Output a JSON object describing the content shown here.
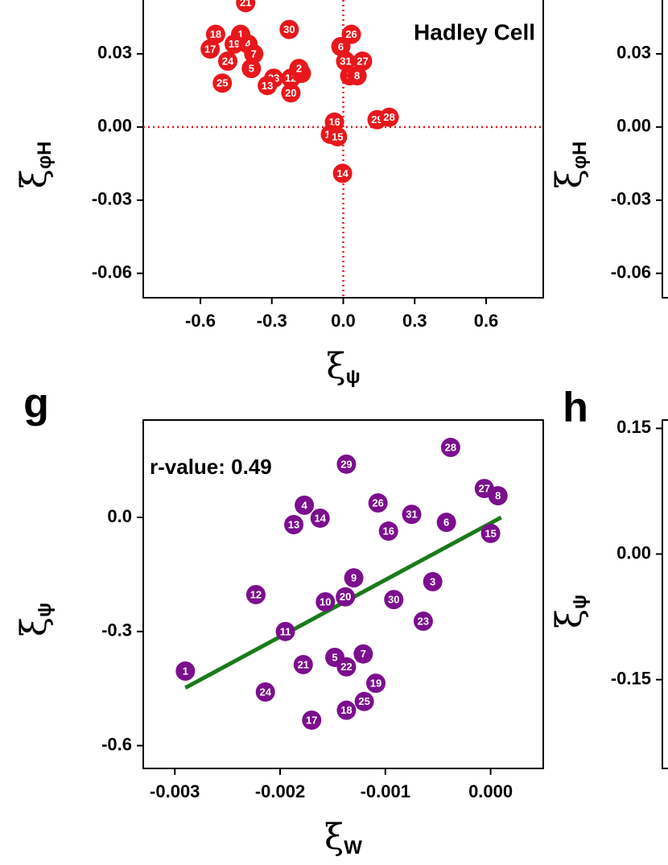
{
  "chart_data": [
    {
      "type": "scatter",
      "annotation": "Hadley Cell",
      "xlabel": {
        "symbol": "ξ",
        "subscript": "ψ"
      },
      "ylabel": {
        "symbol": "ξ",
        "subscript": "φH"
      },
      "xlim": [
        -0.84,
        0.84
      ],
      "xticks": [
        -0.6,
        -0.3,
        {
          "value": 0,
          "label": "0.0"
        },
        0.3,
        0.6
      ],
      "ylim": [
        -0.07,
        0.06
      ],
      "yticks": [
        0.03,
        {
          "value": 0,
          "label": "0.00"
        },
        -0.03,
        -0.06
      ],
      "hline": 0,
      "vline": 0,
      "series": [
        {
          "color": "#e8171b",
          "point_labels": [
            "21",
            "18",
            "1",
            "17",
            "19",
            "4",
            "7",
            "24",
            "5",
            "25",
            "30",
            "23",
            "13",
            "12",
            "9",
            "2",
            "20",
            "6",
            "26",
            "31",
            "27",
            "3",
            "8",
            "16",
            "10",
            "15",
            "14",
            "29",
            "28"
          ],
          "x": [
            -0.41,
            -0.536,
            -0.431,
            -0.559,
            -0.458,
            -0.4,
            -0.376,
            -0.485,
            -0.386,
            -0.508,
            -0.227,
            -0.292,
            -0.319,
            -0.22,
            -0.176,
            -0.186,
            -0.22,
            -0.01,
            0.034,
            0.01,
            0.081,
            0.027,
            0.058,
            -0.037,
            -0.054,
            -0.024,
            -0.003,
            0.142,
            0.193
          ],
          "values": [
            0.051,
            0.038,
            0.038,
            0.032,
            0.034,
            0.034,
            0.03,
            0.027,
            0.024,
            0.018,
            0.04,
            0.02,
            0.017,
            0.02,
            0.022,
            0.024,
            0.014,
            0.033,
            0.038,
            0.027,
            0.027,
            0.021,
            0.021,
            0.002,
            -0.003,
            -0.004,
            -0.019,
            0.003,
            0.004
          ]
        }
      ]
    },
    {
      "type": "scatter",
      "ylabel": {
        "symbol": "ξ",
        "subscript": "φH"
      },
      "ylim": [
        -0.07,
        0.06
      ],
      "yticks": [
        0.03,
        {
          "value": 0,
          "label": "0.00"
        },
        -0.03,
        -0.06
      ]
    },
    {
      "type": "scatter",
      "panel_label": "g",
      "annotation": "r-value: 0.49",
      "xlabel": {
        "symbol": "ξ",
        "subscript": "W"
      },
      "ylabel": {
        "symbol": "ξ",
        "subscript": "ψ"
      },
      "xlim": [
        -0.0033,
        0.0005
      ],
      "xticks": [
        -0.003,
        -0.002,
        -0.001,
        {
          "value": 0,
          "label": "0.000"
        }
      ],
      "ylim": [
        -0.66,
        0.256
      ],
      "yticks": [
        {
          "value": 0,
          "label": "0.0"
        },
        -0.3,
        -0.6
      ],
      "fit": {
        "color": "#1a7a1a",
        "x": [
          -0.0029,
          0.0001
        ],
        "y": [
          -0.448,
          0.0
        ]
      },
      "series": [
        {
          "color": "#7b0f8e",
          "point_labels": [
            "1",
            "24",
            "17",
            "21",
            "11",
            "12",
            "13",
            "4",
            "14",
            "29",
            "26",
            "16",
            "31",
            "28",
            "27",
            "8",
            "6",
            "15",
            "9",
            "10",
            "20",
            "30",
            "3",
            "23",
            "5",
            "7",
            "22",
            "19",
            "25",
            "18"
          ],
          "x": [
            -0.0029,
            -0.00214,
            -0.0017,
            -0.00178,
            -0.00195,
            -0.00223,
            -0.00187,
            -0.00177,
            -0.00162,
            -0.00137,
            -0.00107,
            -0.00097,
            -0.00075,
            -0.00038,
            -6e-05,
            7e-05,
            -0.00042,
            0.0,
            -0.0013,
            -0.00157,
            -0.00138,
            -0.00092,
            -0.00055,
            -0.00064,
            -0.00148,
            -0.00121,
            -0.00137,
            -0.00109,
            -0.0012,
            -0.00137
          ],
          "values": [
            -0.404,
            -0.459,
            -0.533,
            -0.387,
            -0.3,
            -0.203,
            -0.019,
            0.032,
            -0.002,
            0.14,
            0.038,
            -0.036,
            0.008,
            0.184,
            0.076,
            0.057,
            -0.013,
            -0.042,
            -0.159,
            -0.222,
            -0.209,
            -0.216,
            -0.169,
            -0.273,
            -0.368,
            -0.359,
            -0.393,
            -0.436,
            -0.484,
            -0.507
          ]
        }
      ]
    },
    {
      "type": "scatter",
      "panel_label": "h",
      "ylabel": {
        "symbol": "ξ",
        "subscript": "ψ"
      },
      "ylim": [
        -0.256,
        0.16
      ],
      "yticks": [
        0.15,
        {
          "value": 0,
          "label": "0.00"
        },
        -0.15
      ]
    }
  ]
}
